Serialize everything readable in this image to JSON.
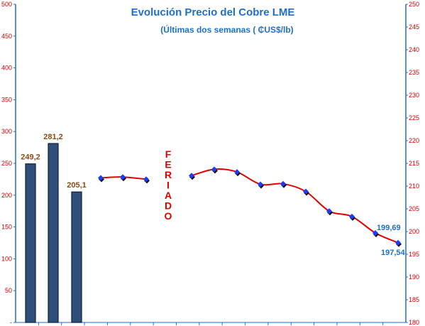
{
  "chart_data": {
    "type": "bar+line",
    "title": "Evolución Precio del Cobre LME",
    "subtitle": "(Últimas dos semanas ( ₵US$/lb)",
    "left_axis": {
      "range": [
        0,
        500
      ],
      "ticks": [
        "-",
        "50",
        "100",
        "150",
        "200",
        "250",
        "300",
        "350",
        "400",
        "450",
        "500"
      ],
      "color": "#cc0000"
    },
    "right_axis": {
      "range": [
        180,
        250
      ],
      "ticks": [
        "180",
        "185",
        "190",
        "195",
        "200",
        "205",
        "210",
        "215",
        "220",
        "225",
        "230",
        "235",
        "240",
        "245",
        "250"
      ],
      "color": "#cc0000"
    },
    "bars": {
      "axis": "left",
      "color": "#2e4f7a",
      "values": [
        249.2,
        281.2,
        205.1
      ],
      "labels": [
        "249,2",
        "281,2",
        "205,1"
      ]
    },
    "line_segments": [
      {
        "axis": "right",
        "values": [
          211.8,
          212.0,
          211.5
        ]
      },
      {
        "axis": "right",
        "values": [
          212.3,
          213.7,
          213.1,
          210.4,
          210.5,
          208.8,
          204.5,
          203.3,
          199.69,
          197.54
        ]
      }
    ],
    "point_labels": [
      "199,69",
      "197,54"
    ],
    "annotation_letters": [
      "F",
      "E",
      "R",
      "I",
      "A",
      "D",
      "O"
    ],
    "colors": {
      "line": "#e00000",
      "marker": "#1a3cff",
      "title": "#1f6fc8",
      "axis": "#1f6fc8"
    }
  }
}
